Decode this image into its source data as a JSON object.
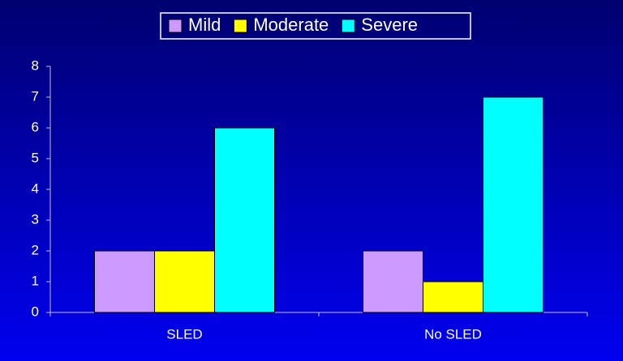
{
  "chart_data": {
    "type": "bar",
    "categories": [
      "SLED",
      "No SLED"
    ],
    "series": [
      {
        "name": "Mild",
        "color": "#cc99ff",
        "values": [
          2,
          2
        ]
      },
      {
        "name": "Moderate",
        "color": "#ffff00",
        "values": [
          2,
          1
        ]
      },
      {
        "name": "Severe",
        "color": "#00ffff",
        "values": [
          6,
          7
        ]
      }
    ],
    "ylim": [
      0,
      8
    ],
    "yticks": [
      0,
      1,
      2,
      3,
      4,
      5,
      6,
      7,
      8
    ],
    "grid": false,
    "legend": "top"
  }
}
